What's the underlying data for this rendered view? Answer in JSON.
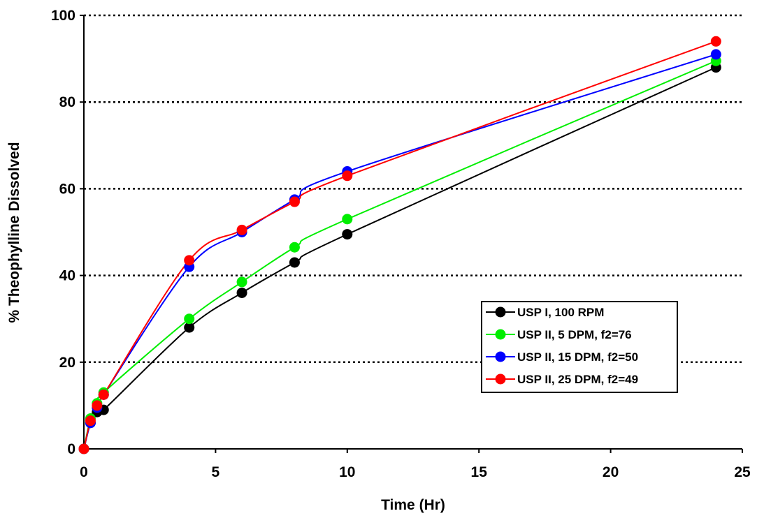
{
  "chart_data": {
    "type": "line",
    "title": "",
    "xlabel": "Time (Hr)",
    "ylabel": "% Theophylline Dissolved",
    "xlim": [
      0,
      25
    ],
    "ylim": [
      0,
      100
    ],
    "xticks": [
      0,
      5,
      10,
      15,
      20,
      25
    ],
    "yticks": [
      0,
      20,
      40,
      60,
      80,
      100
    ],
    "x_tick_labels": [
      "0",
      "5",
      "10",
      "15",
      "20",
      "25"
    ],
    "y_tick_labels": [
      "0",
      "20",
      "40",
      "60",
      "80",
      "100"
    ],
    "grid": "horizontal dotted",
    "legend_position": "lower-right",
    "series": [
      {
        "name": "USP I, 100 RPM",
        "color": "#000000",
        "x": [
          0,
          0.25,
          0.5,
          0.75,
          4,
          6,
          8,
          10,
          24
        ],
        "y": [
          0,
          6,
          8.5,
          9,
          28,
          36,
          43,
          49.5,
          88
        ]
      },
      {
        "name": "USP II, 5 DPM, f2=76",
        "color": "#00ee00",
        "x": [
          0,
          0.25,
          0.5,
          0.75,
          4,
          6,
          8,
          10,
          24
        ],
        "y": [
          0,
          7,
          10.5,
          13,
          30,
          38.5,
          46.5,
          53,
          89.5
        ]
      },
      {
        "name": "USP II, 15 DPM, f2=50",
        "color": "#0000ff",
        "x": [
          0,
          0.25,
          0.5,
          0.75,
          4,
          6,
          8,
          10,
          24
        ],
        "y": [
          0,
          6,
          9.5,
          12.5,
          42,
          50,
          57.5,
          64,
          91
        ]
      },
      {
        "name": "USP II, 25 DPM, f2=49",
        "color": "#ff0000",
        "x": [
          0,
          0.25,
          0.5,
          0.75,
          4,
          6,
          8,
          10,
          24
        ],
        "y": [
          0,
          6.5,
          10,
          12.5,
          43.5,
          50.5,
          57,
          63,
          94
        ]
      }
    ]
  }
}
